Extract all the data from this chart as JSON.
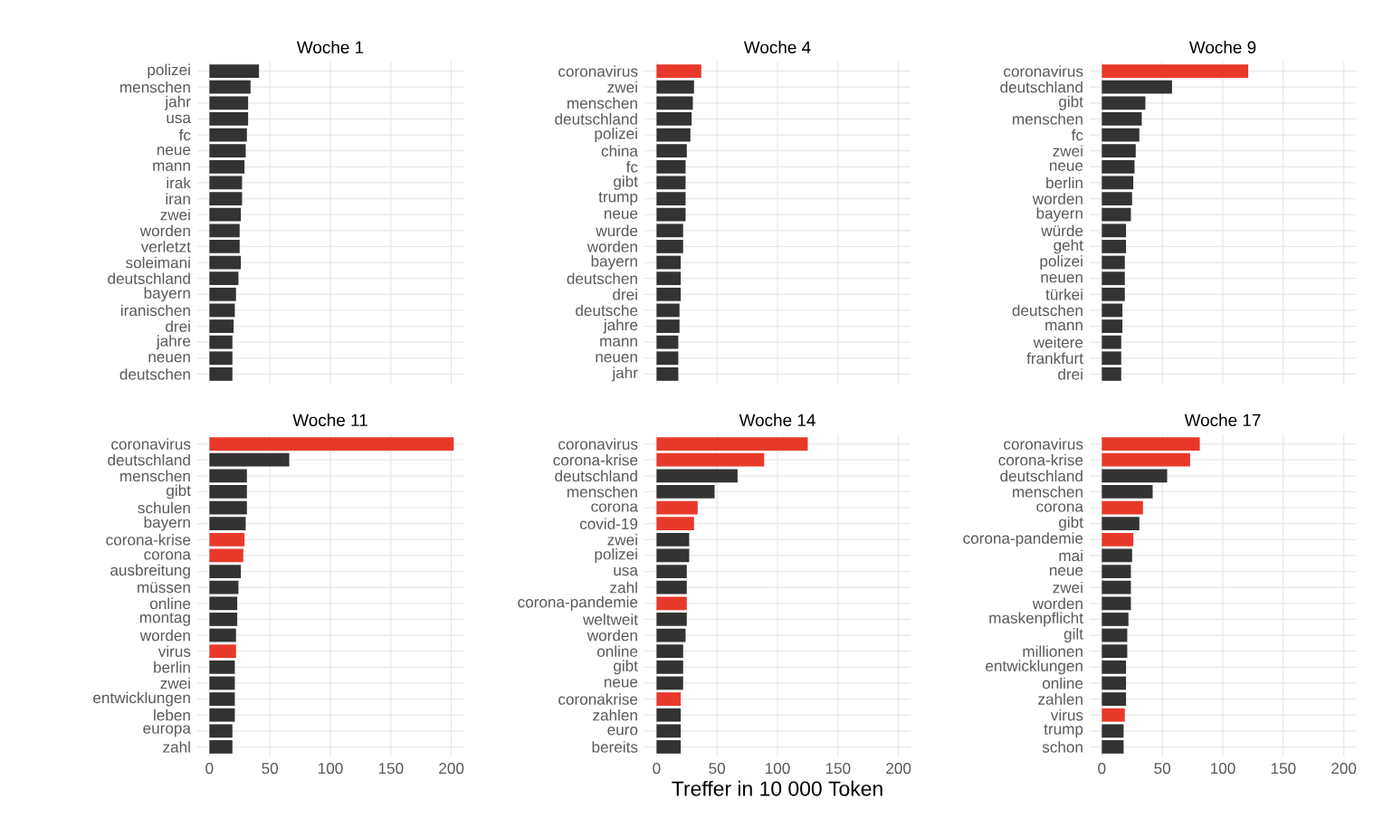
{
  "chart_data": [
    {
      "type": "bar",
      "orientation": "horizontal",
      "title": "Woche 1",
      "tick_labels": "y",
      "grid": true,
      "xlim": [
        -10,
        210
      ],
      "xticks": [
        0,
        50,
        100,
        150,
        200
      ],
      "categories": [
        "polizei",
        "menschen",
        "jahr",
        "usa",
        "fc",
        "neue",
        "mann",
        "irak",
        "iran",
        "zwei",
        "worden",
        "verletzt",
        "soleimani",
        "deutschland",
        "bayern",
        "iranischen",
        "drei",
        "jahre",
        "neuen",
        "deutschen"
      ],
      "values": [
        41,
        34,
        32,
        32,
        31,
        30,
        29,
        27,
        27,
        26,
        25,
        25,
        26,
        24,
        22,
        21,
        20,
        19,
        19,
        19
      ],
      "colors": [
        "#333333",
        "#333333",
        "#333333",
        "#333333",
        "#333333",
        "#333333",
        "#333333",
        "#333333",
        "#333333",
        "#333333",
        "#333333",
        "#333333",
        "#333333",
        "#333333",
        "#333333",
        "#333333",
        "#333333",
        "#333333",
        "#333333",
        "#333333"
      ]
    },
    {
      "type": "bar",
      "orientation": "horizontal",
      "title": "Woche 4",
      "tick_labels": "y",
      "grid": true,
      "xlim": [
        -10,
        210
      ],
      "xticks": [
        0,
        50,
        100,
        150,
        200
      ],
      "categories": [
        "coronavirus",
        "zwei",
        "menschen",
        "deutschland",
        "polizei",
        "china",
        "fc",
        "gibt",
        "trump",
        "neue",
        "wurde",
        "worden",
        "bayern",
        "deutschen",
        "drei",
        "deutsche",
        "jahre",
        "mann",
        "neuen",
        "jahr"
      ],
      "values": [
        37,
        31,
        30,
        29,
        28,
        25,
        24,
        24,
        24,
        24,
        22,
        22,
        20,
        20,
        20,
        19,
        19,
        18,
        18,
        18
      ],
      "colors": [
        "#e8392a",
        "#333333",
        "#333333",
        "#333333",
        "#333333",
        "#333333",
        "#333333",
        "#333333",
        "#333333",
        "#333333",
        "#333333",
        "#333333",
        "#333333",
        "#333333",
        "#333333",
        "#333333",
        "#333333",
        "#333333",
        "#333333",
        "#333333"
      ]
    },
    {
      "type": "bar",
      "orientation": "horizontal",
      "title": "Woche 9",
      "tick_labels": "y",
      "grid": true,
      "xlim": [
        -10,
        210
      ],
      "xticks": [
        0,
        50,
        100,
        150,
        200
      ],
      "categories": [
        "coronavirus",
        "deutschland",
        "gibt",
        "menschen",
        "fc",
        "zwei",
        "neue",
        "berlin",
        "worden",
        "bayern",
        "würde",
        "geht",
        "polizei",
        "neuen",
        "türkei",
        "deutschen",
        "mann",
        "weitere",
        "frankfurt",
        "drei"
      ],
      "values": [
        121,
        58,
        36,
        33,
        31,
        28,
        27,
        26,
        25,
        24,
        20,
        20,
        19,
        19,
        19,
        17,
        17,
        16,
        16,
        16
      ],
      "colors": [
        "#e8392a",
        "#333333",
        "#333333",
        "#333333",
        "#333333",
        "#333333",
        "#333333",
        "#333333",
        "#333333",
        "#333333",
        "#333333",
        "#333333",
        "#333333",
        "#333333",
        "#333333",
        "#333333",
        "#333333",
        "#333333",
        "#333333",
        "#333333"
      ]
    },
    {
      "type": "bar",
      "orientation": "horizontal",
      "title": "Woche 11",
      "grid": true,
      "xlim": [
        -10,
        210
      ],
      "xticks": [
        0,
        50,
        100,
        150,
        200
      ],
      "categories": [
        "coronavirus",
        "deutschland",
        "menschen",
        "gibt",
        "schulen",
        "bayern",
        "corona-krise",
        "corona",
        "ausbreitung",
        "müssen",
        "online",
        "montag",
        "worden",
        "virus",
        "berlin",
        "zwei",
        "entwicklungen",
        "leben",
        "europa",
        "zahl"
      ],
      "values": [
        202,
        66,
        31,
        31,
        31,
        30,
        29,
        28,
        26,
        24,
        23,
        23,
        22,
        22,
        21,
        21,
        21,
        21,
        19,
        19
      ],
      "colors": [
        "#e8392a",
        "#333333",
        "#333333",
        "#333333",
        "#333333",
        "#333333",
        "#e8392a",
        "#e8392a",
        "#333333",
        "#333333",
        "#333333",
        "#333333",
        "#333333",
        "#e8392a",
        "#333333",
        "#333333",
        "#333333",
        "#333333",
        "#333333",
        "#333333"
      ]
    },
    {
      "type": "bar",
      "orientation": "horizontal",
      "title": "Woche 14",
      "xlabel": "Treffer in 10 000 Token",
      "grid": true,
      "xlim": [
        -10,
        210
      ],
      "xticks": [
        0,
        50,
        100,
        150,
        200
      ],
      "categories": [
        "coronavirus",
        "corona-krise",
        "deutschland",
        "menschen",
        "corona",
        "covid-19",
        "zwei",
        "polizei",
        "usa",
        "zahl",
        "corona-pandemie",
        "weltweit",
        "worden",
        "online",
        "gibt",
        "neue",
        "coronakrise",
        "zahlen",
        "euro",
        "bereits"
      ],
      "values": [
        125,
        89,
        67,
        48,
        34,
        31,
        27,
        27,
        25,
        25,
        25,
        25,
        24,
        22,
        22,
        22,
        20,
        20,
        20,
        20
      ],
      "colors": [
        "#e8392a",
        "#e8392a",
        "#333333",
        "#333333",
        "#e8392a",
        "#e8392a",
        "#333333",
        "#333333",
        "#333333",
        "#333333",
        "#e8392a",
        "#333333",
        "#333333",
        "#333333",
        "#333333",
        "#333333",
        "#e8392a",
        "#333333",
        "#333333",
        "#333333"
      ]
    },
    {
      "type": "bar",
      "orientation": "horizontal",
      "title": "Woche 17",
      "grid": true,
      "xlim": [
        -10,
        210
      ],
      "xticks": [
        0,
        50,
        100,
        150,
        200
      ],
      "categories": [
        "coronavirus",
        "corona-krise",
        "deutschland",
        "menschen",
        "corona",
        "gibt",
        "corona-pandemie",
        "mai",
        "neue",
        "zwei",
        "worden",
        "maskenpflicht",
        "gilt",
        "millionen",
        "entwicklungen",
        "online",
        "zahlen",
        "virus",
        "trump",
        "schon"
      ],
      "values": [
        81,
        73,
        54,
        42,
        34,
        31,
        26,
        25,
        24,
        24,
        24,
        22,
        21,
        21,
        20,
        20,
        20,
        19,
        18,
        18
      ],
      "colors": [
        "#e8392a",
        "#e8392a",
        "#333333",
        "#333333",
        "#e8392a",
        "#333333",
        "#e8392a",
        "#333333",
        "#333333",
        "#333333",
        "#333333",
        "#333333",
        "#333333",
        "#333333",
        "#333333",
        "#333333",
        "#333333",
        "#e8392a",
        "#333333",
        "#333333"
      ]
    }
  ]
}
